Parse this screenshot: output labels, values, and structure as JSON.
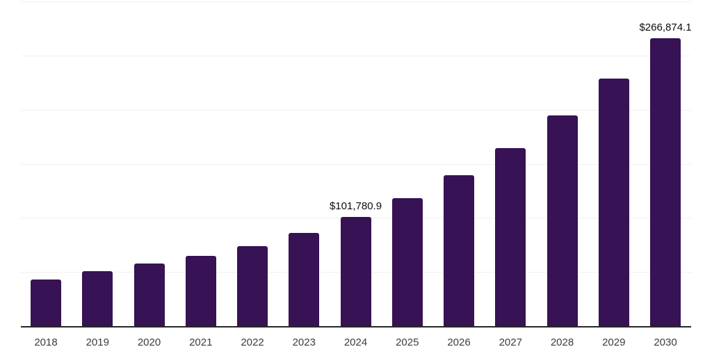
{
  "chart_data": {
    "type": "bar",
    "categories": [
      "2018",
      "2019",
      "2020",
      "2021",
      "2022",
      "2023",
      "2024",
      "2025",
      "2026",
      "2027",
      "2028",
      "2029",
      "2030"
    ],
    "values": [
      43600,
      51300,
      58400,
      65500,
      74500,
      86800,
      101780.9,
      118600,
      140300,
      164800,
      195200,
      229400,
      266874.1
    ],
    "data_labels": {
      "2024": "$101,780.9",
      "2030": "$266,874.1"
    },
    "ylim": [
      0,
      300000
    ],
    "gridline_step": 50000,
    "grid": "horizontal",
    "legend_position": "none",
    "colors": {
      "bar": "#371254",
      "axis_line": "#262626",
      "gridline": "#f0f0f0",
      "tick_label": "#3c3c3c",
      "data_label": "#0d0d0d",
      "background": "#ffffff"
    }
  }
}
